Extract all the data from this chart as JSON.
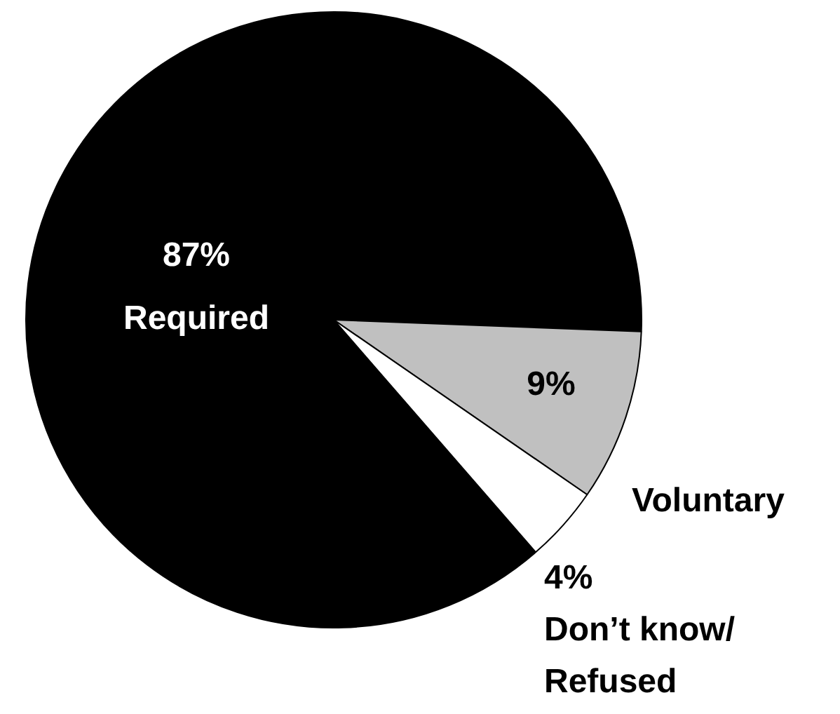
{
  "chart_data": {
    "type": "pie",
    "categories": [
      "Required",
      "Voluntary",
      "Don’t know/\nRefused"
    ],
    "values": [
      87,
      9,
      4
    ],
    "colors": [
      "#000000",
      "#c0c0c0",
      "#ffffff"
    ],
    "value_labels": [
      "87%",
      "9%",
      "4%"
    ],
    "legend": false
  }
}
